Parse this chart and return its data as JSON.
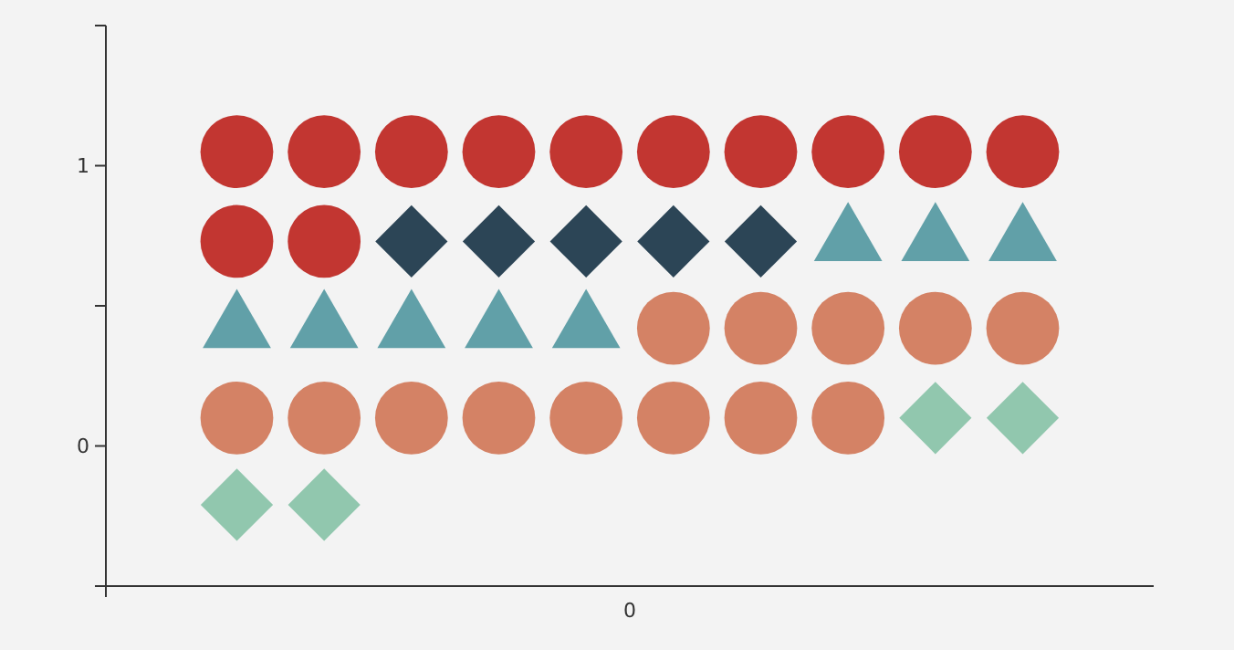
{
  "chart_data": {
    "type": "scatter",
    "categories": [
      null,
      null,
      null,
      null,
      null,
      null,
      null,
      null,
      null,
      null,
      null,
      null
    ],
    "ylim": [
      -0.5,
      1.5
    ],
    "yticks": [
      {
        "value": -0.5,
        "label": null
      },
      0,
      {
        "value": 0.5,
        "label": null
      },
      1,
      {
        "value": 1.5,
        "label": null
      }
    ],
    "annotations": [
      "0"
    ],
    "series": [
      {
        "color": "#c23631",
        "marker": "circle",
        "values": [
          null,
          1.05,
          1.05,
          1.05,
          1.05,
          1.05,
          1.05,
          1.05,
          1.05,
          1.05,
          1.05,
          null
        ]
      },
      {
        "color": "#c23631",
        "marker": "circle",
        "values": [
          null,
          0.73,
          0.73,
          null,
          null,
          null,
          null,
          null,
          null,
          null,
          null,
          null
        ]
      },
      {
        "color": "#2c4556",
        "marker": "diamond",
        "values": [
          null,
          null,
          null,
          0.73,
          0.73,
          0.73,
          0.73,
          0.73,
          null,
          null,
          null,
          null
        ]
      },
      {
        "color": "#61a0a8",
        "marker": "triangle",
        "values": [
          null,
          0.42,
          0.42,
          0.42,
          0.42,
          0.42,
          null,
          null,
          0.73,
          0.73,
          0.73,
          null
        ]
      },
      {
        "color": "#d48265",
        "marker": "circle",
        "values": [
          null,
          null,
          null,
          null,
          null,
          null,
          0.42,
          0.42,
          0.42,
          0.42,
          0.42,
          null
        ]
      },
      {
        "color": "#d48265",
        "marker": "circle",
        "values": [
          null,
          0.1,
          0.1,
          0.1,
          0.1,
          0.1,
          0.1,
          0.1,
          0.1,
          null,
          null,
          null
        ]
      },
      {
        "color": "#91c7ae",
        "marker": "diamond",
        "values": [
          null,
          -0.21,
          -0.21,
          null,
          null,
          null,
          null,
          null,
          null,
          0.1,
          0.1,
          null
        ]
      }
    ]
  }
}
